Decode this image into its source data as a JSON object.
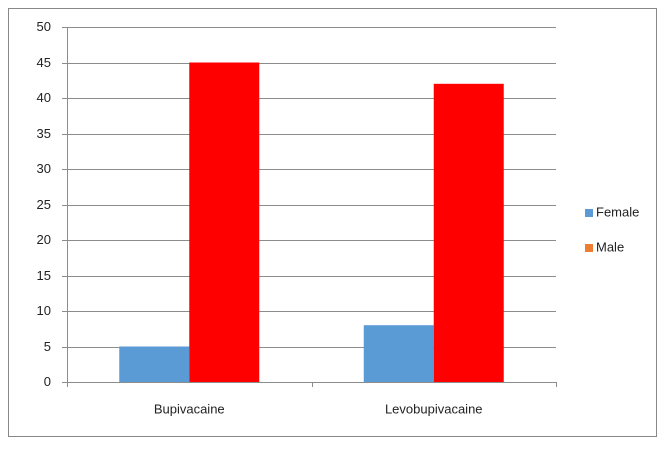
{
  "chart_data": {
    "type": "bar",
    "categories": [
      "Bupivacaine",
      "Levobupivacaine"
    ],
    "series": [
      {
        "name": "Female",
        "color": "#5b9bd5",
        "legend_color": "#5b9bd5",
        "values": [
          5,
          8
        ]
      },
      {
        "name": "Male",
        "color": "#ff0000",
        "legend_color": "#ed7d31",
        "values": [
          45,
          42
        ]
      }
    ],
    "ylim": [
      0,
      50
    ],
    "yticks": [
      0,
      5,
      10,
      15,
      20,
      25,
      30,
      35,
      40,
      45,
      50
    ],
    "grid": true,
    "legend": "right"
  }
}
